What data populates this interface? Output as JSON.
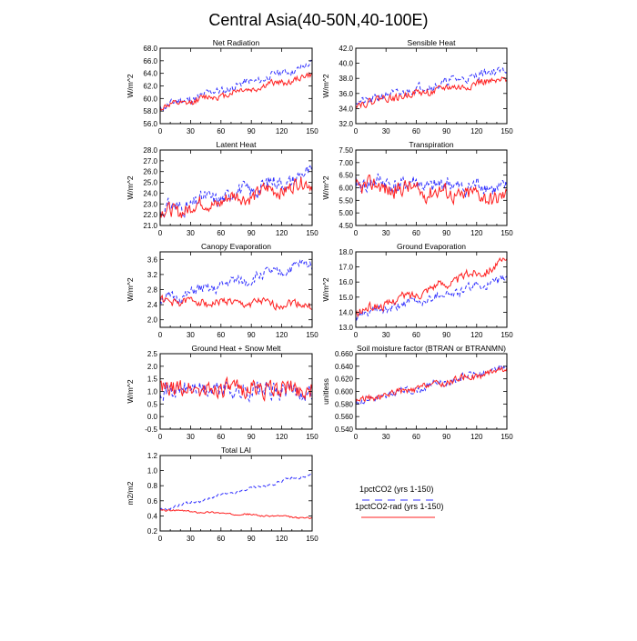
{
  "figure": {
    "title": "Central Asia(40-50N,40-100E)"
  },
  "legend": [
    {
      "label": "1pctCO2 (yrs 1-150)",
      "color": "#3030ff",
      "dash": true
    },
    {
      "label": "1pctCO2-rad (yrs 1-150)",
      "color": "#ff2020",
      "dash": false
    }
  ],
  "chart_data": [
    {
      "type": "line",
      "title": "Net Radiation",
      "ylabel": "W/m^2",
      "xlim": [
        0,
        150
      ],
      "xticks": [
        0,
        30,
        60,
        90,
        120,
        150
      ],
      "xtick_labels": [
        "0",
        "30",
        "60",
        "90",
        "120",
        "150"
      ],
      "ylim": [
        56,
        68
      ],
      "yticks": [
        56,
        58,
        60,
        62,
        64,
        66,
        68
      ],
      "ytick_labels": [
        "56.0",
        "58.0",
        "60.0",
        "62.0",
        "64.0",
        "66.0",
        "68.0"
      ],
      "series": [
        {
          "start": 58.6,
          "end": 65.4,
          "noise": 0.85,
          "amp": 0.4,
          "seed": 11
        },
        {
          "start": 58.5,
          "end": 63.6,
          "noise": 0.7,
          "amp": 0.4,
          "seed": 12
        }
      ]
    },
    {
      "type": "line",
      "title": "Sensible Heat",
      "ylabel": "W/m^2",
      "xlim": [
        0,
        150
      ],
      "xticks": [
        0,
        30,
        60,
        90,
        120,
        150
      ],
      "xtick_labels": [
        "0",
        "30",
        "60",
        "90",
        "120",
        "150"
      ],
      "ylim": [
        32,
        42
      ],
      "yticks": [
        32,
        34,
        36,
        38,
        40,
        42
      ],
      "ytick_labels": [
        "32.0",
        "34.0",
        "36.0",
        "38.0",
        "40.0",
        "42.0"
      ],
      "series": [
        {
          "start": 34.8,
          "end": 39.3,
          "noise": 0.8,
          "amp": 0.3,
          "seed": 21
        },
        {
          "start": 34.7,
          "end": 37.9,
          "noise": 0.7,
          "amp": 0.3,
          "seed": 22
        }
      ]
    },
    {
      "type": "line",
      "title": "Latent Heat",
      "ylabel": "W/m^2",
      "xlim": [
        0,
        150
      ],
      "xticks": [
        0,
        30,
        60,
        90,
        120,
        150
      ],
      "xtick_labels": [
        "0",
        "30",
        "60",
        "90",
        "120",
        "150"
      ],
      "ylim": [
        21,
        28
      ],
      "yticks": [
        21,
        22,
        23,
        24,
        25,
        26,
        27,
        28
      ],
      "ytick_labels": [
        "21.0",
        "22.0",
        "23.0",
        "24.0",
        "25.0",
        "26.0",
        "27.0",
        "28.0"
      ],
      "series": [
        {
          "start": 22.3,
          "end": 25.8,
          "noise": 1.0,
          "amp": 0.5,
          "seed": 31
        },
        {
          "start": 22.1,
          "end": 25.0,
          "noise": 0.9,
          "amp": 0.5,
          "seed": 32
        }
      ]
    },
    {
      "type": "line",
      "title": "Transpiration",
      "ylabel": "W/m^2",
      "xlim": [
        0,
        150
      ],
      "xticks": [
        0,
        30,
        60,
        90,
        120,
        150
      ],
      "xtick_labels": [
        "0",
        "30",
        "60",
        "90",
        "120",
        "150"
      ],
      "ylim": [
        4.5,
        7.5
      ],
      "yticks": [
        4.5,
        5.0,
        5.5,
        6.0,
        6.5,
        7.0,
        7.5
      ],
      "ytick_labels": [
        "4.50",
        "5.00",
        "5.50",
        "6.00",
        "6.50",
        "7.00",
        "7.50"
      ],
      "series": [
        {
          "start": 6.2,
          "end": 6.0,
          "noise": 0.45,
          "amp": 0.2,
          "seed": 41
        },
        {
          "start": 6.1,
          "end": 5.6,
          "noise": 0.45,
          "amp": 0.2,
          "seed": 42
        }
      ]
    },
    {
      "type": "line",
      "title": "Canopy Evaporation",
      "ylabel": "W/m^2",
      "xlim": [
        0,
        150
      ],
      "xticks": [
        0,
        30,
        60,
        90,
        120,
        150
      ],
      "xtick_labels": [
        "0",
        "30",
        "60",
        "90",
        "120",
        "150"
      ],
      "ylim": [
        1.8,
        3.8
      ],
      "yticks": [
        2.0,
        2.4,
        2.8,
        3.2,
        3.6
      ],
      "ytick_labels": [
        "2.0",
        "2.4",
        "2.8",
        "3.2",
        "3.6"
      ],
      "series": [
        {
          "start": 2.5,
          "end": 3.5,
          "noise": 0.2,
          "amp": 0.1,
          "seed": 51
        },
        {
          "start": 2.5,
          "end": 2.4,
          "noise": 0.15,
          "amp": 0.08,
          "seed": 52
        }
      ]
    },
    {
      "type": "line",
      "title": "Ground Evaporation",
      "ylabel": "W/m^2",
      "xlim": [
        0,
        150
      ],
      "xticks": [
        0,
        30,
        60,
        90,
        120,
        150
      ],
      "xtick_labels": [
        "0",
        "30",
        "60",
        "90",
        "120",
        "150"
      ],
      "ylim": [
        13,
        18
      ],
      "yticks": [
        13,
        14,
        15,
        16,
        17,
        18
      ],
      "ytick_labels": [
        "13.0",
        "14.0",
        "15.0",
        "16.0",
        "17.0",
        "18.0"
      ],
      "series": [
        {
          "start": 13.7,
          "end": 16.2,
          "noise": 0.4,
          "amp": 0.2,
          "seed": 61
        },
        {
          "start": 13.9,
          "end": 17.3,
          "noise": 0.4,
          "amp": 0.2,
          "seed": 62
        }
      ]
    },
    {
      "type": "line",
      "title": "Ground Heat + Snow Melt",
      "ylabel": "W/m^2",
      "xlim": [
        0,
        150
      ],
      "xticks": [
        0,
        30,
        60,
        90,
        120,
        150
      ],
      "xtick_labels": [
        "0",
        "30",
        "60",
        "90",
        "120",
        "150"
      ],
      "ylim": [
        -0.5,
        2.5
      ],
      "yticks": [
        -0.5,
        0.0,
        0.5,
        1.0,
        1.5,
        2.0,
        2.5
      ],
      "ytick_labels": [
        "-0.5",
        "0.0",
        "0.5",
        "1.0",
        "1.5",
        "2.0",
        "2.5"
      ],
      "series": [
        {
          "start": 1.1,
          "end": 1.0,
          "noise": 0.5,
          "amp": 0.1,
          "seed": 71
        },
        {
          "start": 1.1,
          "end": 1.1,
          "noise": 0.5,
          "amp": 0.1,
          "seed": 72
        }
      ]
    },
    {
      "type": "line",
      "title": "Soil moisture factor (BTRAN or BTRANMN)",
      "ylabel": "unitless",
      "xlim": [
        0,
        150
      ],
      "xticks": [
        0,
        30,
        60,
        90,
        120,
        150
      ],
      "xtick_labels": [
        "0",
        "30",
        "60",
        "90",
        "120",
        "150"
      ],
      "ylim": [
        0.54,
        0.66
      ],
      "yticks": [
        0.54,
        0.56,
        0.58,
        0.6,
        0.62,
        0.64,
        0.66
      ],
      "ytick_labels": [
        "0.540",
        "0.560",
        "0.580",
        "0.600",
        "0.620",
        "0.640",
        "0.660"
      ],
      "series": [
        {
          "start": 0.582,
          "end": 0.638,
          "noise": 0.008,
          "amp": 0.004,
          "seed": 81
        },
        {
          "start": 0.584,
          "end": 0.636,
          "noise": 0.007,
          "amp": 0.004,
          "seed": 82
        }
      ]
    },
    {
      "type": "line",
      "title": "Total LAI",
      "ylabel": "m2/m2",
      "xlim": [
        0,
        150
      ],
      "xticks": [
        0,
        30,
        60,
        90,
        120,
        150
      ],
      "xtick_labels": [
        "0",
        "30",
        "60",
        "90",
        "120",
        "150"
      ],
      "ylim": [
        0.2,
        1.2
      ],
      "yticks": [
        0.2,
        0.4,
        0.6,
        0.8,
        1.0,
        1.2
      ],
      "ytick_labels": [
        "0.2",
        "0.4",
        "0.6",
        "0.8",
        "1.0",
        "1.2"
      ],
      "series": [
        {
          "start": 0.48,
          "end": 0.95,
          "noise": 0.025,
          "amp": 0.02,
          "seed": 91
        },
        {
          "start": 0.48,
          "end": 0.37,
          "noise": 0.015,
          "amp": 0.01,
          "seed": 92
        }
      ]
    }
  ]
}
